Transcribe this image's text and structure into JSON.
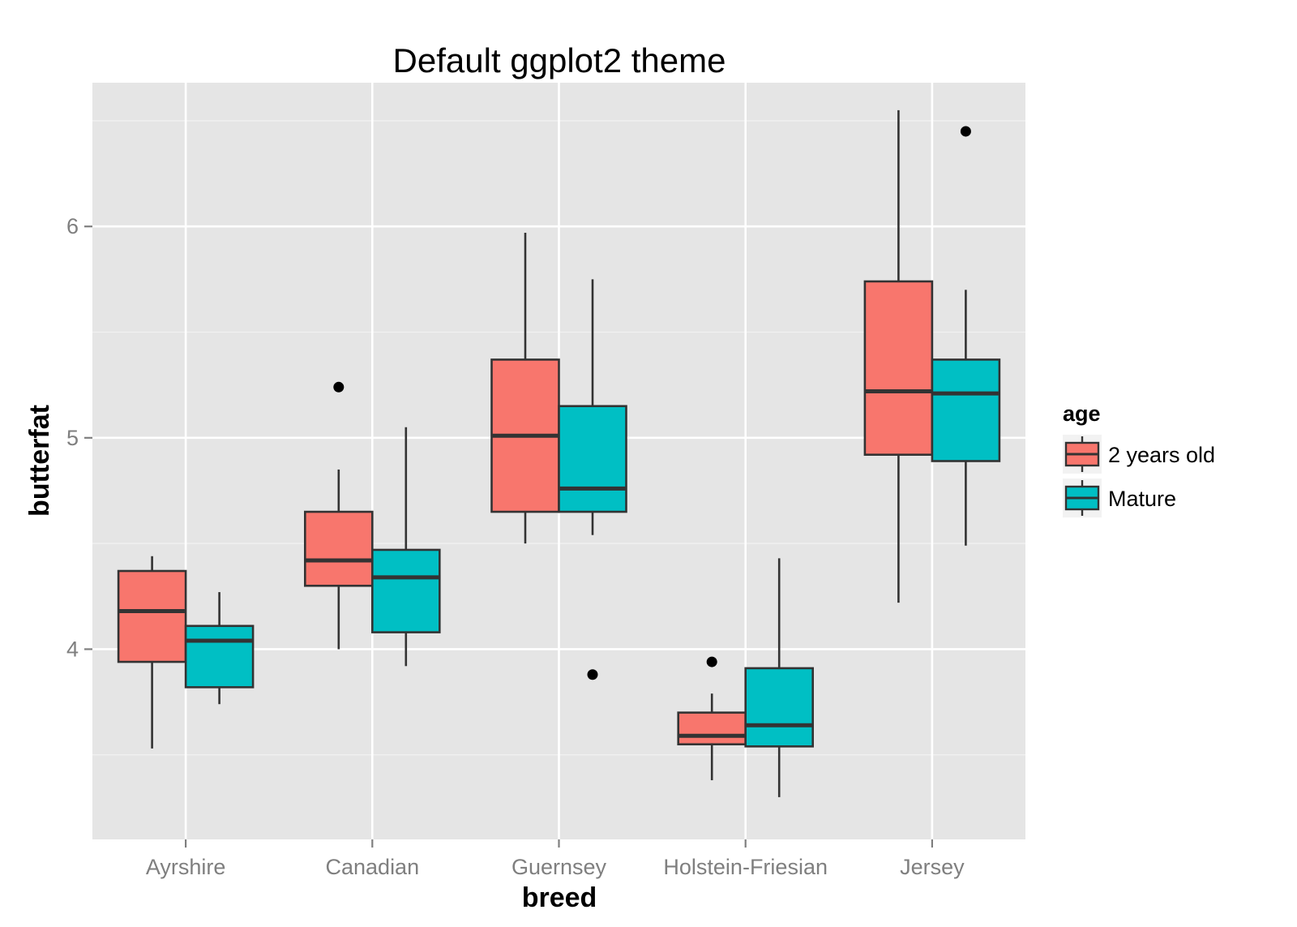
{
  "chart_data": {
    "type": "boxplot",
    "title": "Default ggplot2 theme",
    "xlabel": "breed",
    "ylabel": "butterfat",
    "categories": [
      "Ayrshire",
      "Canadian",
      "Guernsey",
      "Holstein-Friesian",
      "Jersey"
    ],
    "ylim": [
      3.1,
      6.68
    ],
    "yticks": [
      4,
      5,
      6
    ],
    "ytick_labels": [
      "4",
      "5",
      "6"
    ],
    "grid": true,
    "background": "#e5e5e5",
    "legend": {
      "title": "age",
      "position": "right",
      "entries": [
        "2 years old",
        "Mature"
      ]
    },
    "series": [
      {
        "name": "2 years old",
        "color": "#f8766d",
        "boxes": [
          {
            "category": "Ayrshire",
            "whisker_low": 3.53,
            "q1": 3.94,
            "median": 4.18,
            "q3": 4.37,
            "whisker_high": 4.44,
            "outliers": []
          },
          {
            "category": "Canadian",
            "whisker_low": 4.0,
            "q1": 4.3,
            "median": 4.42,
            "q3": 4.65,
            "whisker_high": 4.85,
            "outliers": [
              5.24
            ]
          },
          {
            "category": "Guernsey",
            "whisker_low": 4.5,
            "q1": 4.65,
            "median": 5.01,
            "q3": 5.37,
            "whisker_high": 5.97,
            "outliers": []
          },
          {
            "category": "Holstein-Friesian",
            "whisker_low": 3.38,
            "q1": 3.55,
            "median": 3.59,
            "q3": 3.7,
            "whisker_high": 3.79,
            "outliers": [
              3.94
            ]
          },
          {
            "category": "Jersey",
            "whisker_low": 4.22,
            "q1": 4.92,
            "median": 5.22,
            "q3": 5.74,
            "whisker_high": 6.55,
            "outliers": []
          }
        ]
      },
      {
        "name": "Mature",
        "color": "#00bfc4",
        "boxes": [
          {
            "category": "Ayrshire",
            "whisker_low": 3.74,
            "q1": 3.82,
            "median": 4.04,
            "q3": 4.11,
            "whisker_high": 4.27,
            "outliers": []
          },
          {
            "category": "Canadian",
            "whisker_low": 3.92,
            "q1": 4.08,
            "median": 4.34,
            "q3": 4.47,
            "whisker_high": 5.05,
            "outliers": []
          },
          {
            "category": "Guernsey",
            "whisker_low": 4.54,
            "q1": 4.65,
            "median": 4.76,
            "q3": 5.15,
            "whisker_high": 5.75,
            "outliers": [
              3.88
            ]
          },
          {
            "category": "Holstein-Friesian",
            "whisker_low": 3.3,
            "q1": 3.54,
            "median": 3.64,
            "q3": 3.91,
            "whisker_high": 4.43,
            "outliers": []
          },
          {
            "category": "Jersey",
            "whisker_low": 4.49,
            "q1": 4.89,
            "median": 5.21,
            "q3": 5.37,
            "whisker_high": 5.7,
            "outliers": [
              6.45
            ]
          }
        ]
      }
    ]
  }
}
